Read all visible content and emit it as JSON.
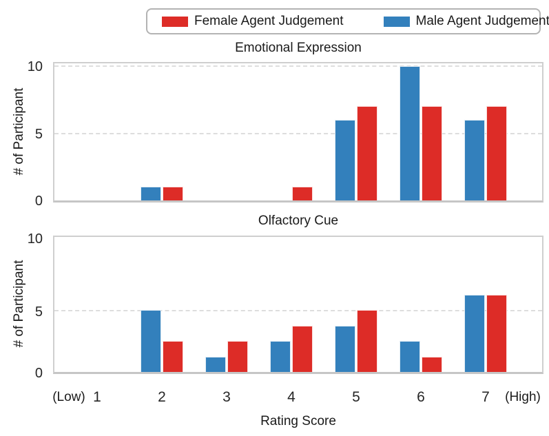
{
  "legend": {
    "items": [
      {
        "label": "Female Agent Judgement",
        "color": "#dd2c27"
      },
      {
        "label": "Male Agent Judgement",
        "color": "#3380bc"
      }
    ]
  },
  "x_axis": {
    "low_label": "(Low)",
    "high_label": "(High)",
    "tick_labels": [
      "1",
      "2",
      "3",
      "4",
      "5",
      "6",
      "7"
    ],
    "title": "Rating Score"
  },
  "chart_data": [
    {
      "type": "bar",
      "title": "Emotional Expression",
      "ylabel": "# of Participant",
      "yticks": [
        "0",
        "5",
        "10"
      ],
      "ylim": [
        0,
        10.3
      ],
      "grid": "horizontal dashed at 5 and 10",
      "legend_position": "top",
      "categories": [
        "1",
        "2",
        "3",
        "4",
        "5",
        "6",
        "7"
      ],
      "series": [
        {
          "name": "Male Agent Judgement",
          "color": "#3380bc",
          "values": [
            0,
            1,
            0,
            0,
            6,
            10,
            6
          ]
        },
        {
          "name": "Female Agent Judgement",
          "color": "#dd2c27",
          "values": [
            0,
            1,
            0,
            1,
            7,
            7,
            7
          ]
        }
      ]
    },
    {
      "type": "bar",
      "title": "Olfactory Cue",
      "ylabel": "# of Participant",
      "yticks": [
        "0",
        "5",
        "10"
      ],
      "ylim": [
        0,
        11
      ],
      "grid": "horizontal dashed at 5",
      "categories": [
        "1",
        "2",
        "3",
        "4",
        "5",
        "6",
        "7"
      ],
      "series": [
        {
          "name": "Male Agent Judgement",
          "color": "#3380bc",
          "values": [
            0,
            5,
            1.25,
            2.5,
            3.75,
            2.5,
            6.25
          ]
        },
        {
          "name": "Female Agent Judgement",
          "color": "#dd2c27",
          "values": [
            0,
            2.5,
            2.5,
            3.75,
            5,
            1.25,
            6.25
          ]
        }
      ]
    }
  ]
}
